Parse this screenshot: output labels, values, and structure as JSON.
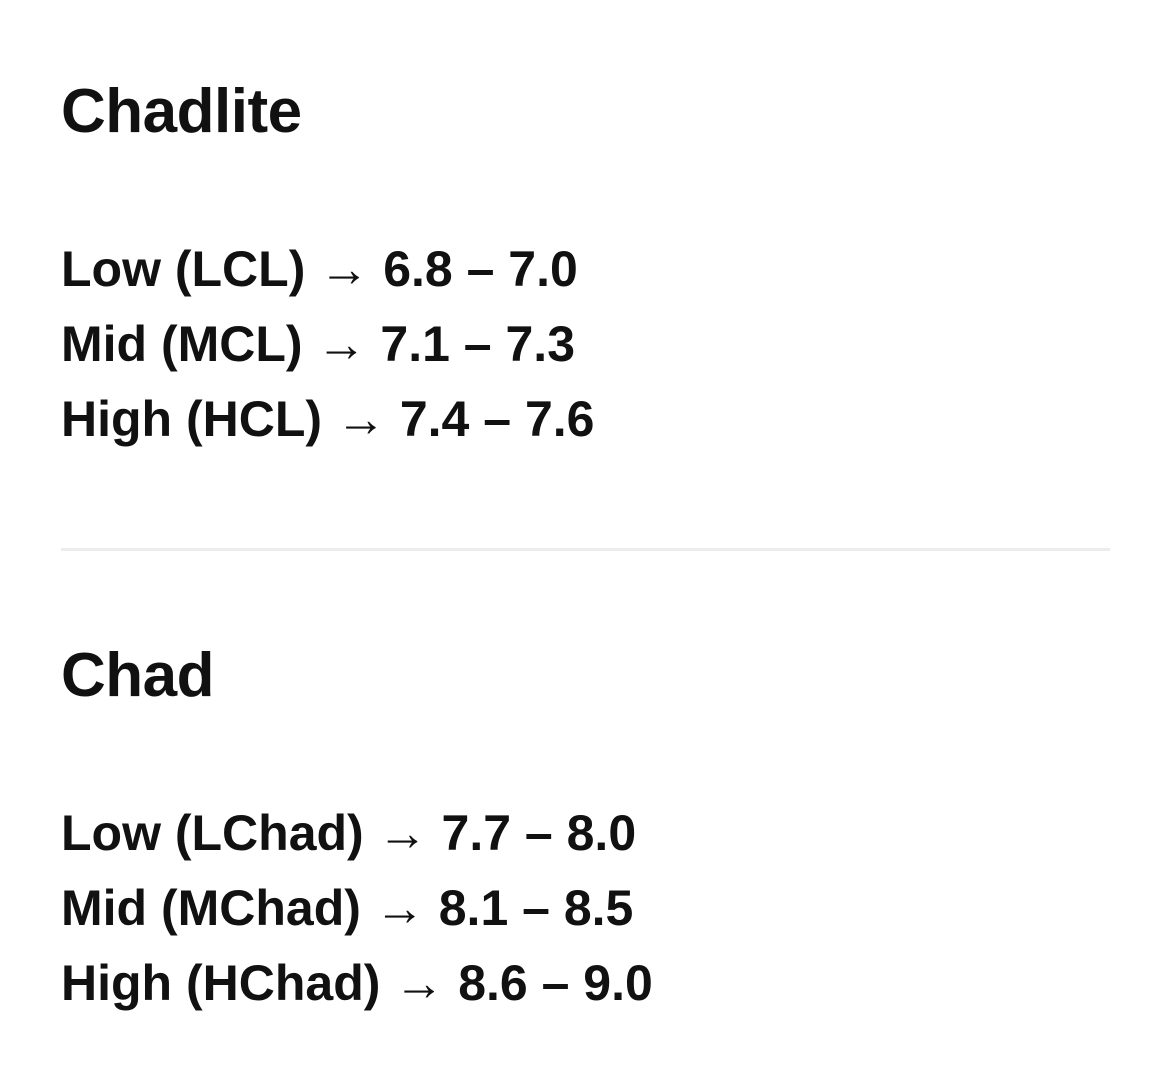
{
  "sections": [
    {
      "title": "Chadlite",
      "items": [
        {
          "label": "Low (LCL)",
          "range": "6.8 – 7.0"
        },
        {
          "label": "Mid (MCL)",
          "range": "7.1 – 7.3"
        },
        {
          "label": "High (HCL)",
          "range": "7.4 – 7.6"
        }
      ]
    },
    {
      "title": "Chad",
      "items": [
        {
          "label": "Low (LChad)",
          "range": "7.7 – 8.0"
        },
        {
          "label": "Mid (MChad)",
          "range": "8.1 – 8.5"
        },
        {
          "label": "High (HChad)",
          "range": "8.6 – 9.0"
        }
      ]
    }
  ],
  "arrow": "→"
}
